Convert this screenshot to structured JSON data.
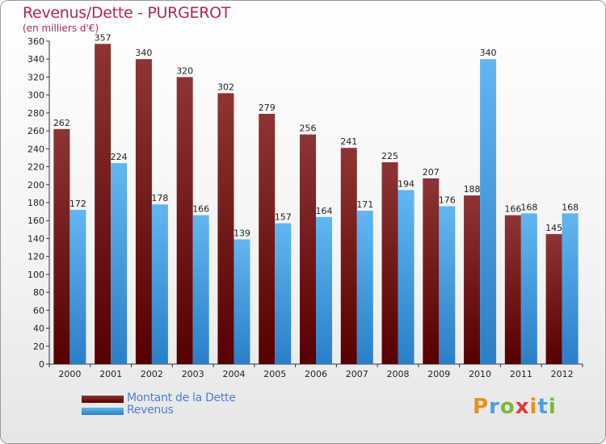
{
  "header": {
    "title": "Revenus/Dette - PURGEROT",
    "subtitle": "(en milliers d'€)"
  },
  "legend": {
    "dette_label": "Montant de la Dette",
    "revenus_label": "Revenus"
  },
  "logo": {
    "text": "Proxiti",
    "letters": [
      "P",
      "r",
      "o",
      "x",
      "i",
      "t",
      "i"
    ],
    "colors": [
      "#e8901a",
      "#4aa0e0",
      "#7ab83a",
      "#e03a3a",
      "#e8901a",
      "#4aa0e0",
      "#7ab83a"
    ]
  },
  "chart_data": {
    "type": "bar",
    "categories": [
      "2000",
      "2001",
      "2002",
      "2003",
      "2004",
      "2005",
      "2006",
      "2007",
      "2008",
      "2009",
      "2010",
      "2011",
      "2012"
    ],
    "series": [
      {
        "name": "Montant de la Dette",
        "color": "#7a1a1a",
        "values": [
          262,
          357,
          340,
          320,
          302,
          279,
          256,
          241,
          225,
          207,
          188,
          166,
          145
        ]
      },
      {
        "name": "Revenus",
        "color": "#3d9be0",
        "values": [
          172,
          224,
          178,
          166,
          139,
          157,
          164,
          171,
          194,
          176,
          340,
          168,
          168
        ]
      }
    ],
    "ylim": [
      0,
      360
    ],
    "yticks": [
      0,
      20,
      40,
      60,
      80,
      100,
      120,
      140,
      160,
      180,
      200,
      220,
      240,
      260,
      280,
      300,
      320,
      340,
      360
    ],
    "grid": false,
    "legend_position": "bottom-left",
    "xlabel": "",
    "ylabel": ""
  }
}
